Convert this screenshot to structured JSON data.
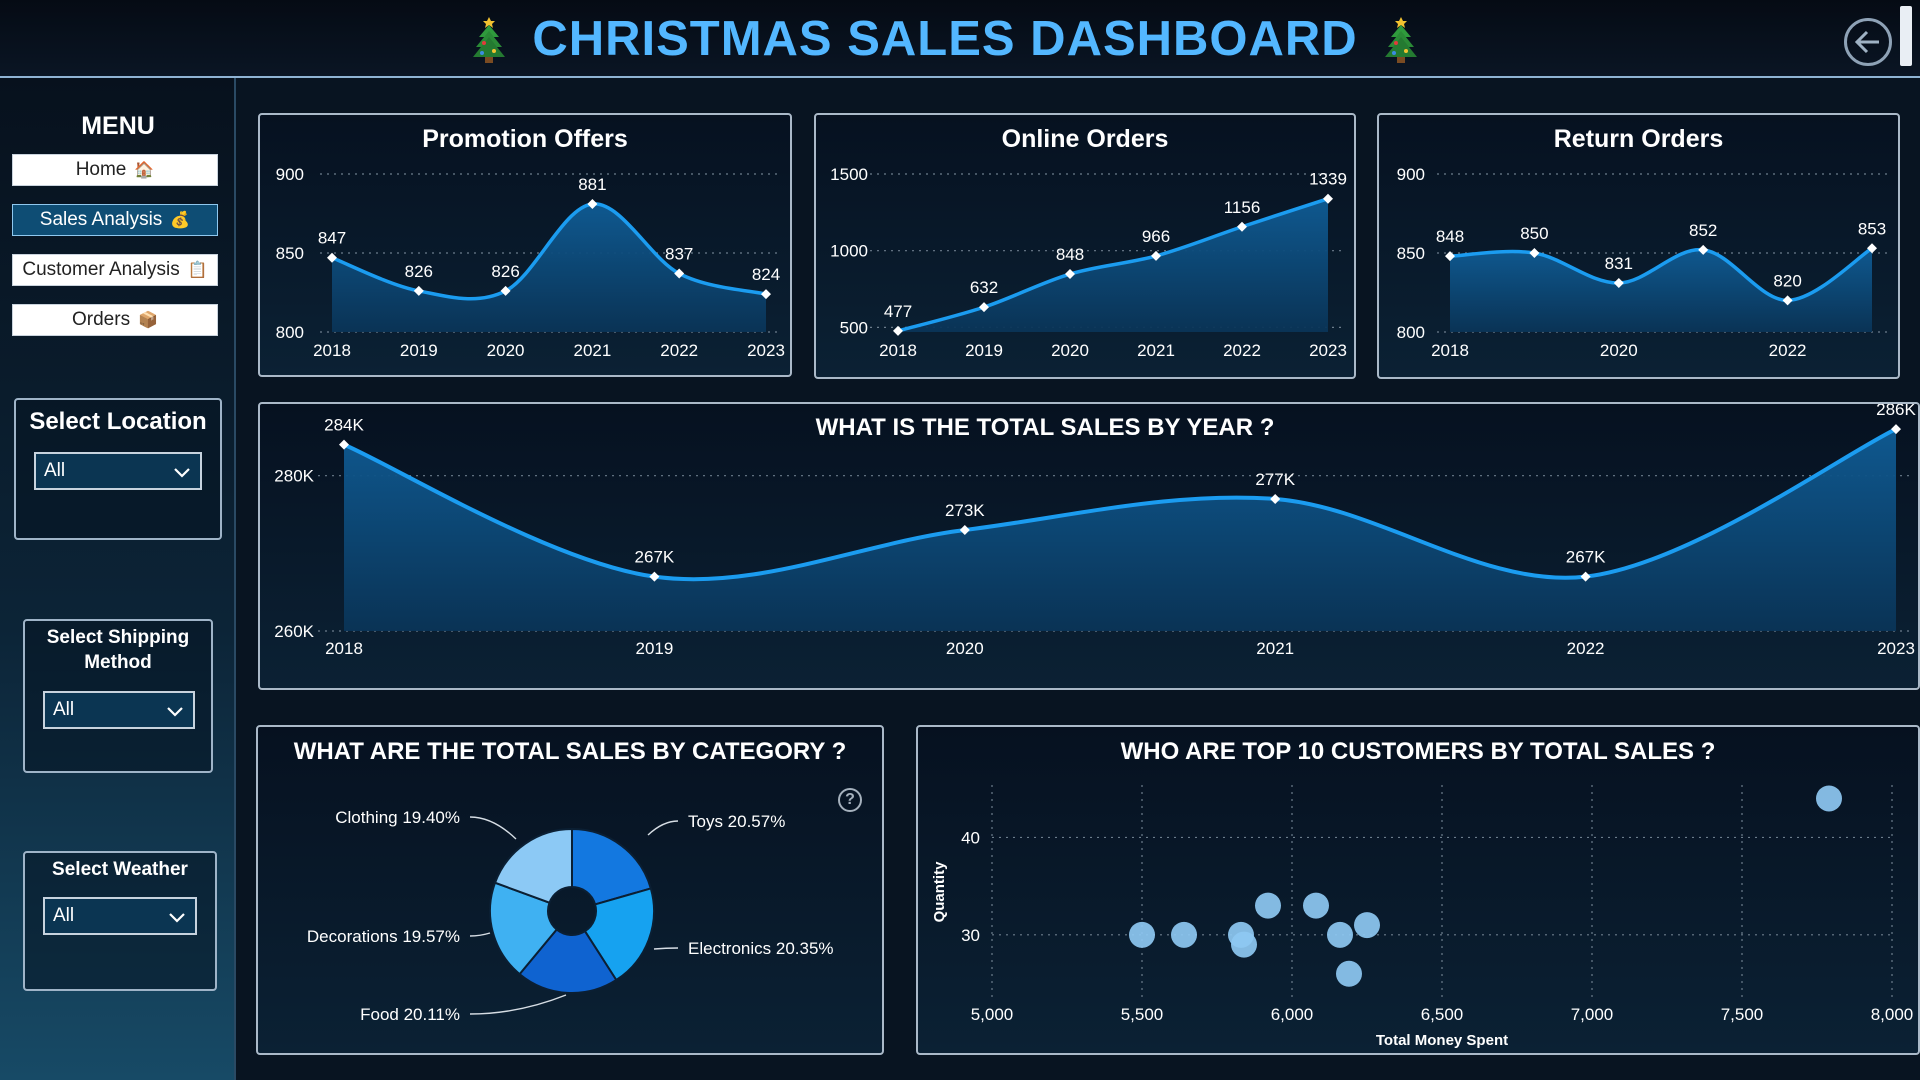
{
  "header": {
    "title": "CHRISTMAS SALES DASHBOARD"
  },
  "menu": {
    "title": "MENU",
    "items": [
      {
        "label": "Home",
        "icon": "house-icon",
        "active": false
      },
      {
        "label": "Sales Analysis",
        "icon": "money-bag-icon",
        "active": true
      },
      {
        "label": "Customer Analysis",
        "icon": "clipboard-icon",
        "active": false
      },
      {
        "label": "Orders",
        "icon": "package-icon",
        "active": false
      }
    ]
  },
  "filters": {
    "location": {
      "label": "Select Location",
      "value": "All"
    },
    "shipping": {
      "label_line1": "Select Shipping",
      "label_line2": "Method",
      "value": "All"
    },
    "weather": {
      "label": "Select Weather",
      "value": "All"
    }
  },
  "colors": {
    "accent": "#1b9cf0",
    "title": "#53b7ff",
    "area": "#0e4a78"
  },
  "chart_data": [
    {
      "id": "promotion",
      "type": "area",
      "title": "Promotion Offers",
      "x": [
        "2018",
        "2019",
        "2020",
        "2021",
        "2022",
        "2023"
      ],
      "x_tick_labels": [
        "2018",
        "2019",
        "2020",
        "2021",
        "2022",
        "2023"
      ],
      "values": [
        847,
        826,
        826,
        881,
        837,
        824
      ],
      "labels": [
        "847",
        "826",
        "826",
        "881",
        "837",
        "824"
      ],
      "ylim": [
        800,
        900
      ],
      "yticks": [
        800,
        850,
        900
      ],
      "ytick_labels": [
        "800",
        "850",
        "900"
      ]
    },
    {
      "id": "online",
      "type": "area",
      "title": "Online Orders",
      "x": [
        "2018",
        "2019",
        "2020",
        "2021",
        "2022",
        "2023"
      ],
      "x_tick_labels": [
        "2018",
        "2019",
        "2020",
        "2021",
        "2022",
        "2023"
      ],
      "values": [
        477,
        632,
        848,
        966,
        1156,
        1339
      ],
      "labels": [
        "477",
        "632",
        "848",
        "966",
        "1156",
        "1339"
      ],
      "ylim": [
        470,
        1500
      ],
      "yticks": [
        500,
        1000,
        1500
      ],
      "ytick_labels": [
        "500",
        "1000",
        "1500"
      ]
    },
    {
      "id": "returns",
      "type": "area",
      "title": "Return Orders",
      "x": [
        "2018",
        "2019",
        "2020",
        "2021",
        "2022",
        "2023"
      ],
      "x_tick_labels": [
        "2018",
        "",
        "2020",
        "",
        "2022",
        ""
      ],
      "values": [
        848,
        850,
        831,
        852,
        820,
        853
      ],
      "labels": [
        "848",
        "850",
        "831",
        "852",
        "820",
        "853"
      ],
      "ylim": [
        800,
        900
      ],
      "yticks": [
        800,
        850,
        900
      ],
      "ytick_labels": [
        "800",
        "850",
        "900"
      ]
    },
    {
      "id": "yearly",
      "type": "area",
      "title": "WHAT IS THE TOTAL SALES BY YEAR ?",
      "x": [
        "2018",
        "2019",
        "2020",
        "2021",
        "2022",
        "2023"
      ],
      "x_tick_labels": [
        "2018",
        "2019",
        "2020",
        "2021",
        "2022",
        "2023"
      ],
      "values": [
        284,
        267,
        273,
        277,
        267,
        286
      ],
      "labels": [
        "284K",
        "267K",
        "273K",
        "277K",
        "267K",
        "286K"
      ],
      "ylim": [
        260,
        290
      ],
      "yticks": [
        260,
        280
      ],
      "ytick_labels": [
        "260K",
        "280K"
      ]
    },
    {
      "id": "category",
      "type": "pie",
      "title": "WHAT ARE THE TOTAL SALES BY CATEGORY ?",
      "slices": [
        {
          "label": "Toys 20.57%",
          "value": 20.57,
          "color": "#1378e0"
        },
        {
          "label": "Electronics 20.35%",
          "value": 20.35,
          "color": "#16a2f0"
        },
        {
          "label": "Food 20.11%",
          "value": 20.11,
          "color": "#0f63d0"
        },
        {
          "label": "Decorations 19.57%",
          "value": 19.57,
          "color": "#3fb1f2"
        },
        {
          "label": "Clothing 19.40%",
          "value": 19.4,
          "color": "#8cc9f5"
        }
      ]
    },
    {
      "id": "customers",
      "type": "scatter",
      "title": "WHO ARE TOP 10 CUSTOMERS BY TOTAL SALES ?",
      "xlabel": "Total Money Spent",
      "ylabel": "Quantity",
      "xlim": [
        5000,
        8000
      ],
      "ylim": [
        23,
        46
      ],
      "xticks": [
        5000,
        5500,
        6000,
        6500,
        7000,
        7500,
        8000
      ],
      "xtick_labels": [
        "5,000",
        "5,500",
        "6,000",
        "6,500",
        "7,000",
        "7,500",
        "8,000"
      ],
      "yticks": [
        30,
        40
      ],
      "ytick_labels": [
        "30",
        "40"
      ],
      "points": [
        {
          "x": 5500,
          "y": 30
        },
        {
          "x": 5640,
          "y": 30
        },
        {
          "x": 5830,
          "y": 30
        },
        {
          "x": 5840,
          "y": 29
        },
        {
          "x": 5920,
          "y": 33
        },
        {
          "x": 6080,
          "y": 33
        },
        {
          "x": 6160,
          "y": 30
        },
        {
          "x": 6250,
          "y": 31
        },
        {
          "x": 6190,
          "y": 26
        },
        {
          "x": 7790,
          "y": 44
        }
      ]
    }
  ]
}
